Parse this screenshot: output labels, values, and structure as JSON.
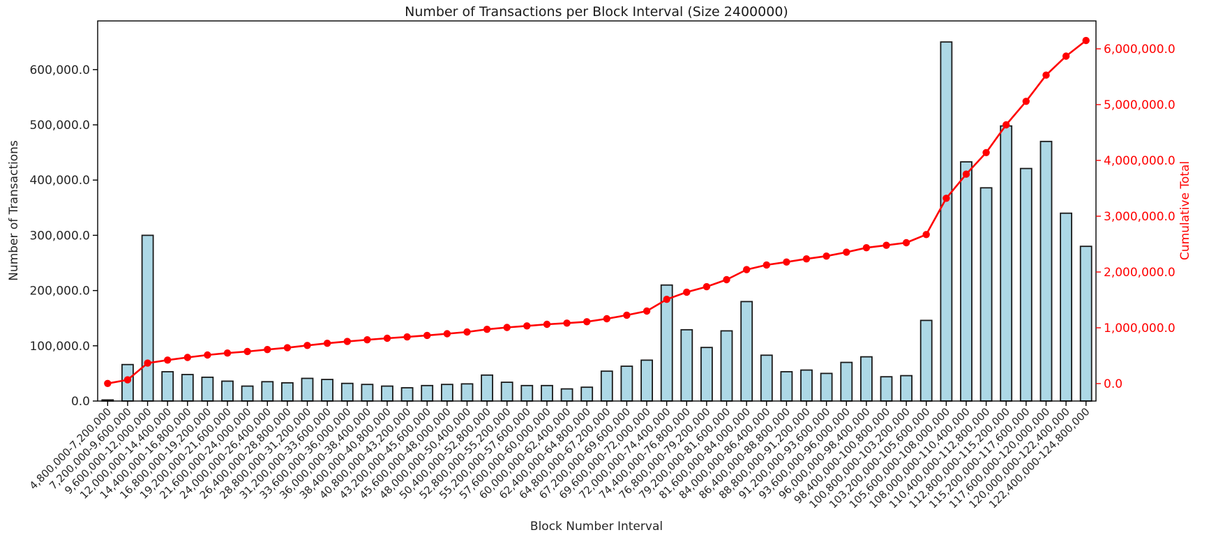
{
  "chart_data": {
    "type": "bar",
    "title": "Number of Transactions per Block Interval (Size 2400000)",
    "xlabel": "Block Number Interval",
    "ylabel_left": "Number of Transactions",
    "ylabel_right": "Cumulative Total",
    "legend_position": "none",
    "grid": false,
    "categories": [
      "4,800,000-7,200,000",
      "7,200,000-9,600,000",
      "9,600,000-12,000,000",
      "12,000,000-14,400,000",
      "14,400,000-16,800,000",
      "16,800,000-19,200,000",
      "19,200,000-21,600,000",
      "21,600,000-24,000,000",
      "24,000,000-26,400,000",
      "26,400,000-28,800,000",
      "28,800,000-31,200,000",
      "31,200,000-33,600,000",
      "33,600,000-36,000,000",
      "36,000,000-38,400,000",
      "38,400,000-40,800,000",
      "40,800,000-43,200,000",
      "43,200,000-45,600,000",
      "45,600,000-48,000,000",
      "48,000,000-50,400,000",
      "50,400,000-52,800,000",
      "52,800,000-55,200,000",
      "55,200,000-57,600,000",
      "57,600,000-60,000,000",
      "60,000,000-62,400,000",
      "62,400,000-64,800,000",
      "64,800,000-67,200,000",
      "67,200,000-69,600,000",
      "69,600,000-72,000,000",
      "72,000,000-74,400,000",
      "74,400,000-76,800,000",
      "76,800,000-79,200,000",
      "79,200,000-81,600,000",
      "81,600,000-84,000,000",
      "84,000,000-86,400,000",
      "86,400,000-88,800,000",
      "88,800,000-91,200,000",
      "91,200,000-93,600,000",
      "93,600,000-96,000,000",
      "96,000,000-98,400,000",
      "98,400,000-100,800,000",
      "100,800,000-103,200,000",
      "103,200,000-105,600,000",
      "105,600,000-108,000,000",
      "108,000,000-110,400,000",
      "110,400,000-112,800,000",
      "112,800,000-115,200,000",
      "115,200,000-117,600,000",
      "117,600,000-120,000,000",
      "120,000,000-122,400,000",
      "122,400,000-124,800,000"
    ],
    "series": [
      {
        "name": "Number of Transactions",
        "type": "bar",
        "axis": "left",
        "fill_color": "#add8e6",
        "edge_color": "#1a1a1a",
        "values": [
          2000,
          66000,
          300000,
          53000,
          48000,
          43000,
          36000,
          27000,
          35000,
          33000,
          41000,
          39000,
          32000,
          30000,
          27000,
          24000,
          28000,
          30000,
          31000,
          47000,
          34000,
          28000,
          28000,
          22000,
          25000,
          54000,
          63000,
          74000,
          210000,
          129000,
          97000,
          127000,
          180000,
          83000,
          53000,
          56000,
          50000,
          70000,
          80000,
          44000,
          46000,
          146000,
          650000,
          433000,
          386000,
          498000,
          421000,
          470000,
          340000,
          280000
        ]
      },
      {
        "name": "Cumulative Total",
        "type": "line",
        "axis": "right",
        "color": "#ff0000",
        "marker": "circle",
        "values": [
          2000,
          68000,
          368000,
          421000,
          469000,
          512000,
          548000,
          575000,
          610000,
          643000,
          684000,
          723000,
          755000,
          785000,
          812000,
          836000,
          864000,
          894000,
          925000,
          972000,
          1006000,
          1034000,
          1062000,
          1084000,
          1109000,
          1163000,
          1226000,
          1300000,
          1510000,
          1639000,
          1736000,
          1863000,
          2043000,
          2126000,
          2179000,
          2235000,
          2285000,
          2355000,
          2435000,
          2479000,
          2525000,
          2671000,
          3321000,
          3754000,
          4140000,
          4638000,
          5059000,
          5529000,
          5869000,
          6149000
        ]
      }
    ],
    "left_axis": {
      "color": "#000000",
      "tick_labels": [
        "0.0",
        "100,000.0",
        "200,000.0",
        "300,000.0",
        "400,000.0",
        "500,000.0",
        "600,000.0"
      ],
      "tick_values": [
        0,
        100000,
        200000,
        300000,
        400000,
        500000,
        600000
      ]
    },
    "right_axis": {
      "color": "#ff0000",
      "tick_labels": [
        "0.0",
        "1,000,000.0",
        "2,000,000.0",
        "3,000,000.0",
        "4,000,000.0",
        "5,000,000.0",
        "6,000,000.0"
      ],
      "tick_values": [
        0,
        1000000,
        2000000,
        3000000,
        4000000,
        5000000,
        6000000
      ]
    }
  }
}
